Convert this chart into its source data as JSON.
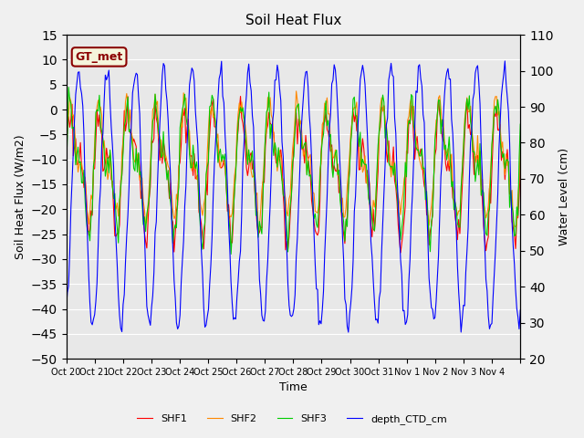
{
  "title": "Soil Heat Flux",
  "ylabel_left": "Soil Heat Flux (W/m2)",
  "ylabel_right": "Water Level (cm)",
  "xlabel": "Time",
  "ylim_left": [
    -50,
    15
  ],
  "ylim_right": [
    20,
    110
  ],
  "xtick_labels": [
    "Oct 20",
    "Oct 21",
    "Oct 22",
    "Oct 23",
    "Oct 24",
    "Oct 25",
    "Oct 26",
    "Oct 27",
    "Oct 28",
    "Oct 29",
    "Oct 30",
    "Oct 31",
    "Nov 1",
    "Nov 2",
    "Nov 3",
    "Nov 4"
  ],
  "legend_labels": [
    "SHF1",
    "SHF2",
    "SHF3",
    "depth_CTD_cm"
  ],
  "colors": [
    "#ff0000",
    "#ff8800",
    "#00cc00",
    "#0000ff"
  ],
  "annotation_text": "GT_met",
  "annotation_color": "#8b0000",
  "annotation_bg": "#f5f5dc",
  "annotation_border": "#8b0000",
  "fig_bg": "#f0f0f0",
  "plot_bg": "#e8e8e8",
  "grid_color": "#ffffff"
}
